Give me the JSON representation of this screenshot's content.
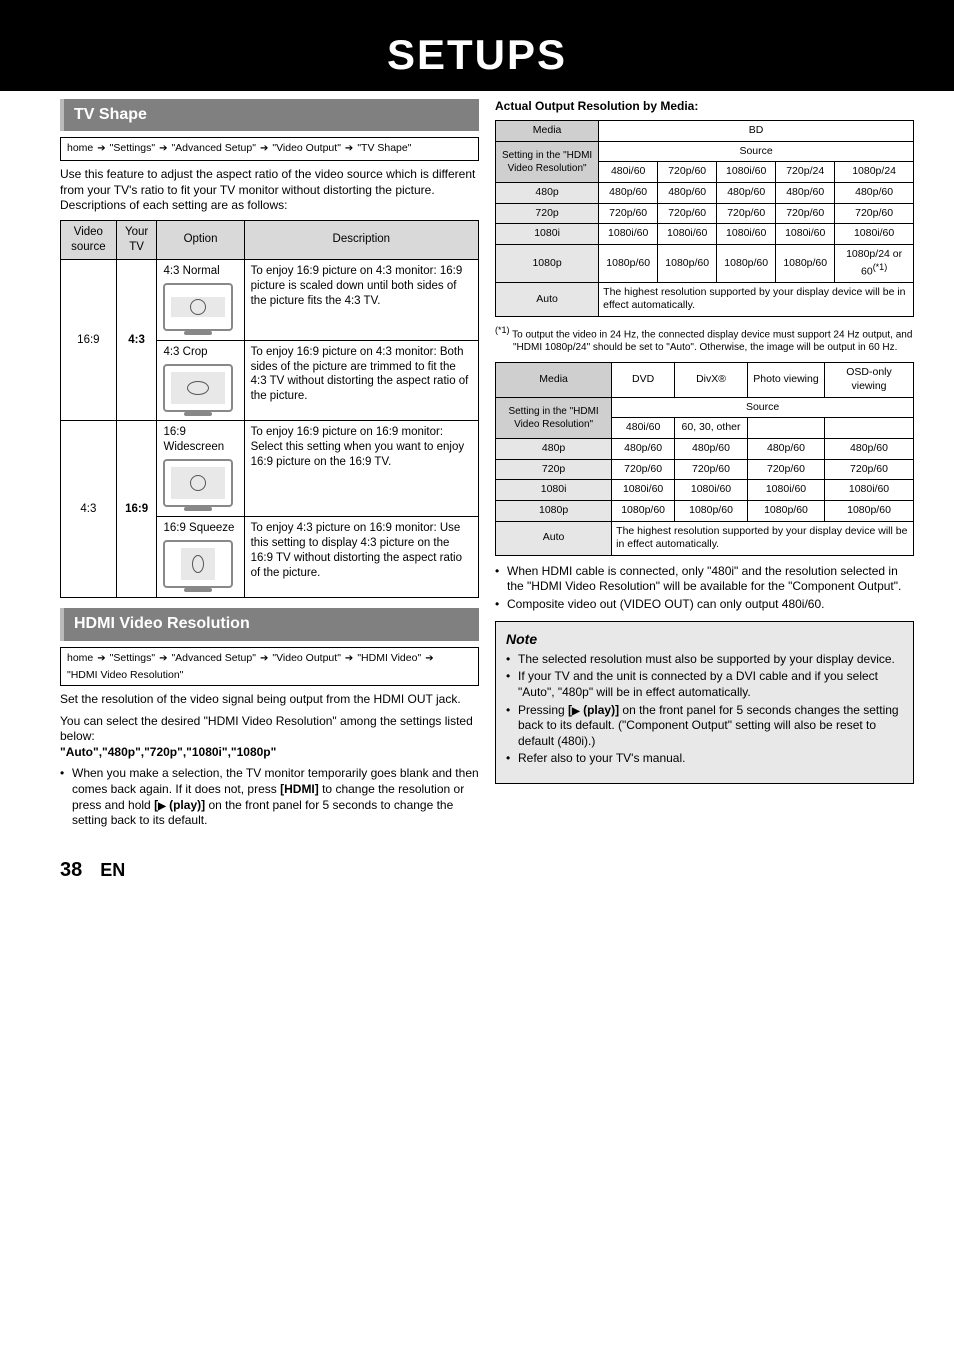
{
  "header": {
    "title": "SETUPS"
  },
  "footer": {
    "page": "38",
    "lang": "EN"
  },
  "tvshape": {
    "heading": "TV Shape",
    "breadcrumb": [
      "home",
      "\"Settings\"",
      "\"Advanced Setup\"",
      "\"Video Output\"",
      "\"TV Shape\""
    ],
    "intro": "Use this feature to adjust the aspect ratio of the video source which is different from your TV's ratio to fit your TV monitor without distorting the picture. Descriptions of each setting are as follows:",
    "cols": {
      "c1": "Video source",
      "c2": "Your TV",
      "c3": "Option",
      "c4": "Description"
    },
    "rows": [
      {
        "src": "16:9",
        "tv": "4:3",
        "opt": "4:3 Normal",
        "desc": "To enjoy 16:9 picture on 4:3 monitor:\n16:9 picture is scaled down until both sides of the picture fits the 4:3 TV."
      },
      {
        "src": "16:9",
        "tv": "4:3",
        "opt": "4:3 Crop",
        "desc": "To enjoy 16:9 picture on 4:3 monitor:\nBoth sides of the picture are trimmed to fit the 4:3 TV without distorting the aspect ratio of the picture."
      },
      {
        "src": "4:3",
        "tv": "16:9",
        "opt": "16:9 Widescreen",
        "desc": "To enjoy 16:9 picture on 16:9 monitor:\nSelect this setting when you want to enjoy 16:9 picture on the 16:9 TV."
      },
      {
        "src": "4:3",
        "tv": "16:9",
        "opt": "16:9 Squeeze",
        "desc": "To enjoy 4:3 picture on 16:9 monitor:\nUse this setting to display 4:3 picture on the 16:9 TV without distorting the aspect ratio of the picture."
      }
    ]
  },
  "hdmi": {
    "heading": "HDMI Video Resolution",
    "breadcrumb": [
      "home",
      "\"Settings\"",
      "\"Advanced Setup\"",
      "\"Video Output\"",
      "\"HDMI Video\"",
      "\"HDMI Video Resolution\""
    ],
    "p1": "Set the resolution of the video signal being output from the HDMI OUT jack.",
    "p2": "You can select the desired \"HDMI Video Resolution\" among the settings listed below:",
    "bold": "\"Auto\",\"480p\",\"720p\",\"1080i\",\"1080p\"",
    "b1a": "When you make a selection, the TV monitor temporarily goes blank and then comes back again. If it does not, press ",
    "b1b": "[HDMI]",
    "b1c": " to change the resolution or press and hold ",
    "b1d": "(play)]",
    "b1e": " on the front panel for 5 seconds to change the setting back to its default."
  },
  "actual": {
    "heading": "Actual Output Resolution by Media:",
    "t1": {
      "media": "Media",
      "bd": "BD",
      "setting": "Setting in the \"HDMI Video Resolution\"",
      "source": "Source",
      "srcHdr": [
        "480i/60",
        "720p/60",
        "1080i/60",
        "720p/24",
        "1080p/24"
      ],
      "rows": [
        [
          "480p",
          "480p/60",
          "480p/60",
          "480p/60",
          "480p/60",
          "480p/60"
        ],
        [
          "720p",
          "720p/60",
          "720p/60",
          "720p/60",
          "720p/60",
          "720p/60"
        ],
        [
          "1080i",
          "1080i/60",
          "1080i/60",
          "1080i/60",
          "1080i/60",
          "1080i/60"
        ],
        [
          "1080p",
          "1080p/60",
          "1080p/60",
          "1080p/60",
          "1080p/60",
          "1080p/24 or 60"
        ]
      ],
      "autoLabel": "Auto",
      "autoText": "The highest resolution supported by your display device will be in effect automatically.",
      "supref": "(*1)"
    },
    "fn1_pre": "(*1)",
    "fn1": "To output the video in 24 Hz, the connected display device must support 24 Hz output, and \"HDMI 1080p/24\" should be set to \"Auto\". Otherwise, the image will be output in 60 Hz.",
    "t2": {
      "mediaHdr": [
        "Media",
        "DVD",
        "DivX®",
        "Photo viewing",
        "OSD-only viewing"
      ],
      "setting": "Setting in the \"HDMI Video Resolution\"",
      "source": "Source",
      "srcHdr": [
        "480i/60",
        "60, 30, other",
        "",
        ""
      ],
      "rows": [
        [
          "480p",
          "480p/60",
          "480p/60",
          "480p/60",
          "480p/60"
        ],
        [
          "720p",
          "720p/60",
          "720p/60",
          "720p/60",
          "720p/60"
        ],
        [
          "1080i",
          "1080i/60",
          "1080i/60",
          "1080i/60",
          "1080i/60"
        ],
        [
          "1080p",
          "1080p/60",
          "1080p/60",
          "1080p/60",
          "1080p/60"
        ]
      ],
      "autoLabel": "Auto",
      "autoText": "The highest resolution supported by your display device will be in effect automatically."
    },
    "bullets": [
      "When HDMI cable is connected, only \"480i\" and the resolution selected in the \"HDMI Video Resolution\" will be available for the \"Component Output\".",
      "Composite video out (VIDEO OUT) can only output 480i/60."
    ]
  },
  "note": {
    "title": "Note",
    "items": {
      "n1": "The selected resolution must also be supported by your display device.",
      "n2": "If your TV and the unit is connected by a DVI cable and if you select \"Auto\", \"480p\" will be in effect automatically.",
      "n3a": "Pressing ",
      "n3b": "(play)]",
      "n3c": " on the front panel for 5 seconds changes the setting back to its default. (\"Component Output\" setting will also be reset to default (480i).)",
      "n4": "Refer also to your TV's manual."
    }
  }
}
